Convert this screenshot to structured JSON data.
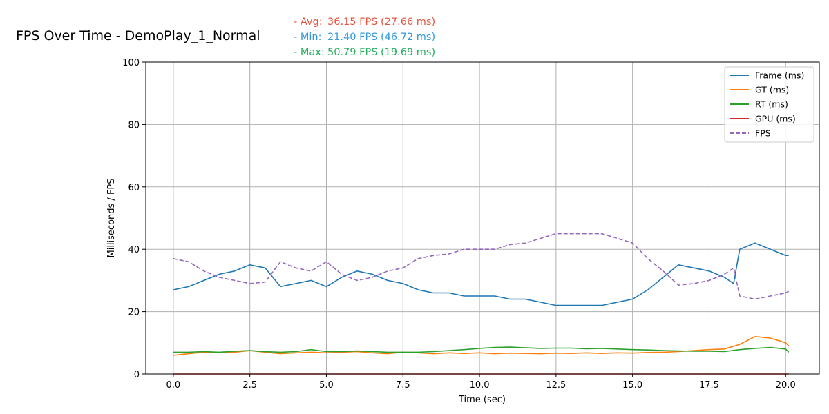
{
  "colors": {
    "avg": "#e7553f",
    "min": "#3498db",
    "max": "#27ae60",
    "grid": "#b0b0b0"
  },
  "stats": {
    "avg": {
      "label": "- Avg:",
      "value": "36.15 FPS (27.66 ms)"
    },
    "min": {
      "label": "- Min:",
      "value": "21.40 FPS (46.72 ms)"
    },
    "max": {
      "label": "- Max:",
      "value": "50.79 FPS (19.69 ms)"
    }
  },
  "chart_data": {
    "type": "line",
    "title": "FPS Over Time - DemoPlay_1_Normal",
    "xlabel": "Time (sec)",
    "ylabel": "Milliseconds / FPS",
    "xlim": [
      -0.9,
      21.1
    ],
    "ylim": [
      0,
      100
    ],
    "grid": true,
    "legend_position": "top-right",
    "x_ticks": [
      0.0,
      2.5,
      5.0,
      7.5,
      10.0,
      12.5,
      15.0,
      17.5,
      20.0
    ],
    "x_tick_labels": [
      "0.0",
      "2.5",
      "5.0",
      "7.5",
      "10.0",
      "12.5",
      "15.0",
      "17.5",
      "20.0"
    ],
    "y_ticks": [
      0,
      20,
      40,
      60,
      80,
      100
    ],
    "y_tick_labels": [
      "0",
      "20",
      "40",
      "60",
      "80",
      "100"
    ],
    "series": [
      {
        "name": "Frame (ms)",
        "color": "#1f77b4",
        "style": "solid",
        "x": [
          0,
          0.5,
          1,
          1.5,
          2,
          2.5,
          3,
          3.5,
          4,
          4.5,
          5,
          5.5,
          6,
          6.5,
          7,
          7.5,
          8,
          8.5,
          9,
          9.5,
          10,
          10.5,
          11,
          11.5,
          12,
          12.5,
          13,
          13.5,
          14,
          14.5,
          15,
          15.5,
          16,
          16.5,
          17,
          17.5,
          18,
          18.3,
          18.5,
          19,
          19.5,
          20,
          20.1
        ],
        "values": [
          27,
          28,
          30,
          32,
          33,
          35,
          34,
          28,
          29,
          30,
          28,
          31,
          33,
          32,
          30,
          29,
          27,
          26,
          26,
          25,
          25,
          25,
          24,
          24,
          23,
          22,
          22,
          22,
          22,
          23,
          24,
          27,
          31,
          35,
          34,
          33,
          31,
          29,
          40,
          42,
          40,
          38,
          38
        ]
      },
      {
        "name": "GT (ms)",
        "color": "#ff7f0e",
        "style": "solid",
        "x": [
          0,
          0.5,
          1,
          1.5,
          2,
          2.5,
          3,
          3.5,
          4,
          4.5,
          5,
          5.5,
          6,
          6.5,
          7,
          7.5,
          8,
          8.5,
          9,
          9.5,
          10,
          10.5,
          11,
          11.5,
          12,
          12.5,
          13,
          13.5,
          14,
          14.5,
          15,
          15.5,
          16,
          16.5,
          17,
          17.5,
          18,
          18.5,
          19,
          19.5,
          20,
          20.1
        ],
        "values": [
          6,
          6.5,
          7,
          6.8,
          7,
          7.5,
          7,
          6.5,
          6.8,
          7,
          6.8,
          7,
          7.2,
          6.8,
          6.5,
          7,
          6.8,
          6.5,
          6.8,
          6.6,
          6.8,
          6.5,
          6.7,
          6.6,
          6.5,
          6.7,
          6.6,
          6.8,
          6.6,
          6.8,
          6.7,
          6.9,
          7,
          7.2,
          7.5,
          7.8,
          8,
          9.5,
          12,
          11.5,
          10,
          9
        ]
      },
      {
        "name": "RT (ms)",
        "color": "#2ca02c",
        "style": "solid",
        "x": [
          0,
          0.5,
          1,
          1.5,
          2,
          2.5,
          3,
          3.5,
          4,
          4.5,
          5,
          5.5,
          6,
          6.5,
          7,
          7.5,
          8,
          8.5,
          9,
          9.5,
          10,
          10.5,
          11,
          11.5,
          12,
          12.5,
          13,
          13.5,
          14,
          14.5,
          15,
          15.5,
          16,
          16.5,
          17,
          17.5,
          18,
          18.5,
          19,
          19.5,
          20,
          20.1
        ],
        "values": [
          7,
          7,
          7.2,
          7,
          7.3,
          7.5,
          7.2,
          7,
          7.2,
          7.8,
          7.2,
          7.2,
          7.4,
          7.2,
          7,
          7,
          7,
          7.2,
          7.5,
          7.8,
          8.2,
          8.5,
          8.6,
          8.4,
          8.2,
          8.3,
          8.3,
          8.1,
          8.2,
          8,
          7.8,
          7.7,
          7.5,
          7.4,
          7.3,
          7.3,
          7.2,
          7.8,
          8.2,
          8.5,
          8,
          7
        ]
      },
      {
        "name": "GPU (ms)",
        "color": "#d62728",
        "style": "solid",
        "x": [
          0,
          20.1
        ],
        "values": [
          0,
          0
        ]
      },
      {
        "name": "FPS",
        "color": "#9467bd",
        "style": "dashed",
        "x": [
          0,
          0.5,
          1,
          1.5,
          2,
          2.5,
          3,
          3.5,
          4,
          4.5,
          5,
          5.5,
          6,
          6.5,
          7,
          7.5,
          8,
          8.5,
          9,
          9.5,
          10,
          10.5,
          11,
          11.5,
          12,
          12.5,
          13,
          13.5,
          14,
          14.5,
          15,
          15.5,
          16,
          16.5,
          17,
          17.5,
          18,
          18.3,
          18.5,
          19,
          19.5,
          20,
          20.1
        ],
        "values": [
          37,
          36,
          33,
          31,
          30,
          29,
          29.5,
          36,
          34,
          33,
          36,
          32,
          30,
          31,
          33,
          34,
          37,
          38,
          38.5,
          40,
          40,
          40,
          41.5,
          42,
          43.5,
          45,
          45,
          45,
          45,
          43.5,
          42,
          37,
          33,
          28.5,
          29,
          30,
          32,
          34,
          25,
          24,
          25,
          26,
          26.5
        ]
      }
    ]
  }
}
